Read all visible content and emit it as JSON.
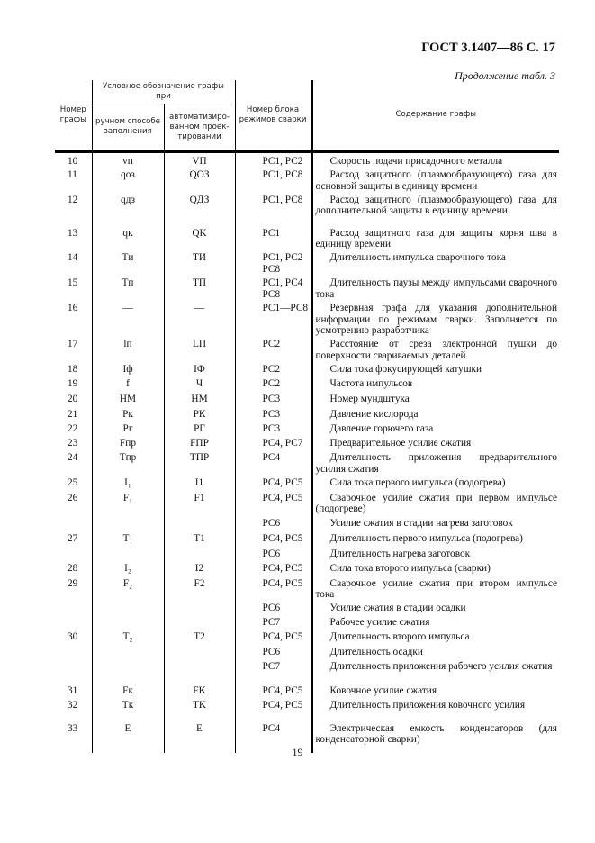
{
  "header": {
    "title": "ГОСТ 3.1407—86 С. 17",
    "continuation": "Продолжение табл. 3"
  },
  "table": {
    "headers": {
      "number": "Номер графы",
      "designation": "Условное обозначение графы при",
      "manual": "ручном способе заполнения",
      "automated": "автоматизиро-ванном проек-тировании",
      "block": "Номер блока режимов сварки",
      "content": "Содержание графы"
    },
    "rows": [
      {
        "num": "10",
        "manual": "vп",
        "auto": "VП",
        "block": "РС1, РС2",
        "content": "Скорость подачи присадочного металла"
      },
      {
        "num": "11",
        "manual": "qоз",
        "auto": "QОЗ",
        "block": "РС1, РС8",
        "content": "Расход защитного (плазмообразующего) газа для основной защиты в единицу времени"
      },
      {
        "num": "12",
        "manual": "qдз",
        "auto": "QДЗ",
        "block": "РС1, РС8",
        "content": "Расход защитного (плазмообразующего) газа для дополнительной защиты в единицу времени"
      },
      {
        "num": "13",
        "manual": "qк",
        "auto": "QK",
        "block": "РС1",
        "content": "Расход защитного газа для защиты корня шва в единицу времени"
      },
      {
        "num": "14",
        "manual": "Tи",
        "auto": "ТИ",
        "block": "РС1, РС2 РС8",
        "content": "Длительность импульса сварочного тока"
      },
      {
        "num": "15",
        "manual": "Tп",
        "auto": "ТП",
        "block": "РС1, РС4 РС8",
        "content": "Длительность паузы между импульсами сварочного тока"
      },
      {
        "num": "16",
        "manual": "—",
        "auto": "—",
        "block": "РС1—РС8",
        "content": "Резервная графа для указания дополнительной информации по режимам сварки. Заполняется по усмотрению разработчика"
      },
      {
        "num": "17",
        "manual": "lп",
        "auto": "LП",
        "block": "РС2",
        "content": "Расстояние от среза электронной пушки до поверхности свариваемых деталей"
      },
      {
        "num": "18",
        "manual": "Iф",
        "auto": "IФ",
        "block": "РС2",
        "content": "Сила тока фокусирующей катушки"
      },
      {
        "num": "19",
        "manual": "f",
        "auto": "Ч",
        "block": "РС2",
        "content": "Частота импульсов"
      },
      {
        "num": "20",
        "manual": "НМ",
        "auto": "НМ",
        "block": "РС3",
        "content": "Номер мундштука"
      },
      {
        "num": "21",
        "manual": "Pк",
        "auto": "РК",
        "block": "РС3",
        "content": "Давление кислорода"
      },
      {
        "num": "22",
        "manual": "Pг",
        "auto": "РГ",
        "block": "РС3",
        "content": "Давление горючего газа"
      },
      {
        "num": "23",
        "manual": "Fпр",
        "auto": "FПР",
        "block": "РС4, РС7",
        "content": "Предварительное усилие сжатия"
      },
      {
        "num": "24",
        "manual": "Tпр",
        "auto": "ТПР",
        "block": "РС4",
        "content": "Длительность приложения предварительного усилия сжатия"
      },
      {
        "num": "25",
        "manual": "I₁",
        "auto": "I1",
        "block": "РС4, РС5",
        "content": "Сила тока первого импульса (подогрева)"
      },
      {
        "num": "26",
        "manual": "F₁",
        "auto": "F1",
        "block": "РС4, РС5",
        "content": "Сварочное усилие сжатия при первом импульсе (подогреве)"
      },
      {
        "num": "",
        "manual": "",
        "auto": "",
        "block": "РС6",
        "content": "Усилие сжатия в стадии нагрева заготовок"
      },
      {
        "num": "27",
        "manual": "T₁",
        "auto": "T1",
        "block": "РС4, РС5",
        "content": "Длительность первого импульса (подогрева)"
      },
      {
        "num": "",
        "manual": "",
        "auto": "",
        "block": "РС6",
        "content": "Длительность нагрева заготовок"
      },
      {
        "num": "28",
        "manual": "I₂",
        "auto": "I2",
        "block": "РС4, РС5",
        "content": "Сила тока второго импульса (сварки)"
      },
      {
        "num": "29",
        "manual": "F₂",
        "auto": "F2",
        "block": "РС4, РС5",
        "content": "Сварочное усилие сжатия при втором импульсе тока"
      },
      {
        "num": "",
        "manual": "",
        "auto": "",
        "block": "РС6",
        "content": "Усилие сжатия в стадии осадки"
      },
      {
        "num": "",
        "manual": "",
        "auto": "",
        "block": "РС7",
        "content": "Рабочее усилие сжатия"
      },
      {
        "num": "30",
        "manual": "T₂",
        "auto": "T2",
        "block": "РС4, РС5",
        "content": "Длительность второго импульса"
      },
      {
        "num": "",
        "manual": "",
        "auto": "",
        "block": "РС6",
        "content": "Длительность осадки"
      },
      {
        "num": "",
        "manual": "",
        "auto": "",
        "block": "РС7",
        "content": "Длительность приложения рабочего усилия сжатия"
      },
      {
        "num": "31",
        "manual": "Fк",
        "auto": "FK",
        "block": "РС4, РС5",
        "content": "Ковочное усилие сжатия"
      },
      {
        "num": "32",
        "manual": "Tк",
        "auto": "TK",
        "block": "РС4, РС5",
        "content": "Длительность приложения ковочного усилия"
      },
      {
        "num": "33",
        "manual": "E",
        "auto": "E",
        "block": "РС4",
        "content": "Электрическая емкость конденсаторов (для конденсаторной сварки)"
      }
    ]
  },
  "footer": {
    "page_number": "19"
  }
}
